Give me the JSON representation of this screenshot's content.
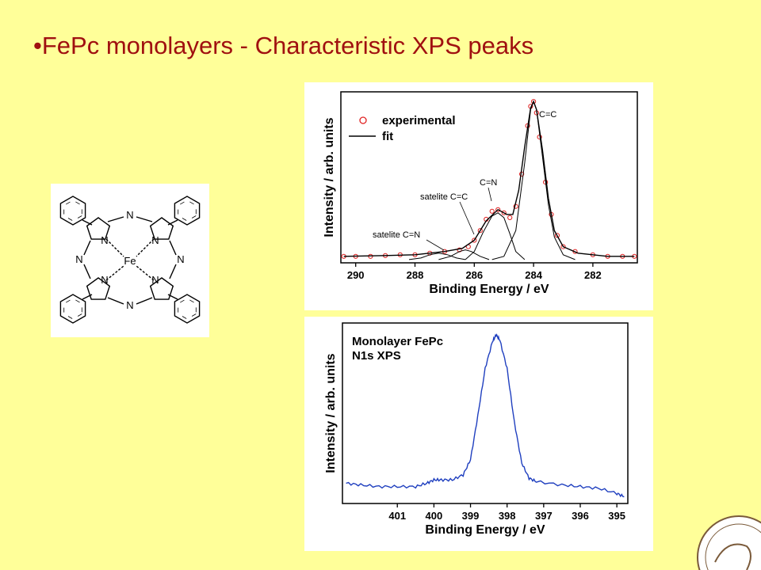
{
  "slide": {
    "title": "•FePc monolayers - Characteristic XPS peaks"
  },
  "molecule": {
    "center_atom": "Fe",
    "atom_label": "N"
  },
  "chart_data": [
    {
      "type": "line",
      "xlabel": "Binding Energy  /  eV",
      "ylabel": "Intensity  /  arb. units",
      "xlim": [
        290.5,
        280.5
      ],
      "x_reversed": true,
      "xticks": [
        "290",
        "288",
        "286",
        "284",
        "282"
      ],
      "legend": {
        "placement": "top-left",
        "entries": [
          "experimental",
          "fit"
        ]
      },
      "annotations": [
        "C=C",
        "C=N",
        "satelite C=C",
        "satelite C=N"
      ],
      "series": [
        {
          "name": "experimental",
          "style": "markers",
          "color": "#E02020",
          "points": [
            [
              290.4,
              0.04
            ],
            [
              290,
              0.04
            ],
            [
              289.5,
              0.04
            ],
            [
              289,
              0.045
            ],
            [
              288.5,
              0.05
            ],
            [
              288,
              0.05
            ],
            [
              287.5,
              0.06
            ],
            [
              287,
              0.07
            ],
            [
              286.5,
              0.08
            ],
            [
              286.2,
              0.1
            ],
            [
              286,
              0.14
            ],
            [
              285.8,
              0.2
            ],
            [
              285.6,
              0.27
            ],
            [
              285.4,
              0.32
            ],
            [
              285.2,
              0.33
            ],
            [
              285,
              0.31
            ],
            [
              284.8,
              0.28
            ],
            [
              284.6,
              0.35
            ],
            [
              284.4,
              0.55
            ],
            [
              284.2,
              0.85
            ],
            [
              284.1,
              0.97
            ],
            [
              284,
              1.0
            ],
            [
              283.9,
              0.93
            ],
            [
              283.8,
              0.78
            ],
            [
              283.6,
              0.5
            ],
            [
              283.4,
              0.3
            ],
            [
              283.2,
              0.17
            ],
            [
              283,
              0.1
            ],
            [
              282.6,
              0.07
            ],
            [
              282,
              0.05
            ],
            [
              281.5,
              0.04
            ],
            [
              281,
              0.04
            ],
            [
              280.6,
              0.04
            ]
          ]
        },
        {
          "name": "fit",
          "style": "line",
          "color": "#000000",
          "points": [
            [
              290.4,
              0.04
            ],
            [
              289,
              0.045
            ],
            [
              288,
              0.05
            ],
            [
              287,
              0.07
            ],
            [
              286.4,
              0.09
            ],
            [
              286,
              0.14
            ],
            [
              285.6,
              0.26
            ],
            [
              285.2,
              0.33
            ],
            [
              284.9,
              0.3
            ],
            [
              284.7,
              0.3
            ],
            [
              284.5,
              0.45
            ],
            [
              284.3,
              0.72
            ],
            [
              284.1,
              0.96
            ],
            [
              284,
              1.0
            ],
            [
              283.9,
              0.95
            ],
            [
              283.7,
              0.7
            ],
            [
              283.5,
              0.4
            ],
            [
              283.3,
              0.2
            ],
            [
              283,
              0.1
            ],
            [
              282.5,
              0.06
            ],
            [
              281.5,
              0.04
            ],
            [
              280.6,
              0.04
            ]
          ]
        },
        {
          "name": "C=C",
          "style": "component",
          "color": "#000000",
          "points": [
            [
              285.4,
              0.02
            ],
            [
              285,
              0.04
            ],
            [
              284.6,
              0.2
            ],
            [
              284.3,
              0.62
            ],
            [
              284.1,
              0.95
            ],
            [
              284,
              1.0
            ],
            [
              283.9,
              0.95
            ],
            [
              283.7,
              0.66
            ],
            [
              283.5,
              0.36
            ],
            [
              283.3,
              0.16
            ],
            [
              283,
              0.05
            ],
            [
              282.6,
              0.02
            ]
          ]
        },
        {
          "name": "C=N",
          "style": "component",
          "color": "#000000",
          "points": [
            [
              286.3,
              0.02
            ],
            [
              286,
              0.07
            ],
            [
              285.7,
              0.19
            ],
            [
              285.4,
              0.29
            ],
            [
              285.2,
              0.31
            ],
            [
              285,
              0.28
            ],
            [
              284.8,
              0.18
            ],
            [
              284.6,
              0.07
            ],
            [
              284.3,
              0.02
            ]
          ]
        },
        {
          "name": "satelite C=C",
          "style": "component",
          "color": "#000000",
          "points": [
            [
              287.2,
              0.02
            ],
            [
              286.8,
              0.04
            ],
            [
              286.5,
              0.07
            ],
            [
              286.3,
              0.08
            ],
            [
              286.1,
              0.07
            ],
            [
              285.8,
              0.04
            ],
            [
              285.5,
              0.02
            ]
          ]
        },
        {
          "name": "satelite C=N",
          "style": "component",
          "color": "#000000",
          "points": [
            [
              288.2,
              0.02
            ],
            [
              287.8,
              0.03
            ],
            [
              287.5,
              0.05
            ],
            [
              287.2,
              0.06
            ],
            [
              286.9,
              0.05
            ],
            [
              286.6,
              0.03
            ],
            [
              286.3,
              0.02
            ]
          ]
        }
      ]
    },
    {
      "type": "line",
      "xlabel": "Binding Energy  /  eV",
      "ylabel": "Intensity  /  arb. units",
      "xlim": [
        402.5,
        394.7
      ],
      "x_reversed": true,
      "xticks": [
        "401",
        "400",
        "399",
        "398",
        "397",
        "396",
        "395"
      ],
      "annotations": [
        "Monolayer FePc",
        "N1s XPS"
      ],
      "series": [
        {
          "name": "N1s",
          "style": "line",
          "color": "#1F3FBF",
          "points": [
            [
              402.4,
              0.12
            ],
            [
              402,
              0.11
            ],
            [
              401.5,
              0.1
            ],
            [
              401,
              0.1
            ],
            [
              400.5,
              0.1
            ],
            [
              400.2,
              0.12
            ],
            [
              400,
              0.14
            ],
            [
              399.8,
              0.14
            ],
            [
              399.5,
              0.14
            ],
            [
              399.2,
              0.17
            ],
            [
              399,
              0.26
            ],
            [
              398.8,
              0.52
            ],
            [
              398.6,
              0.8
            ],
            [
              398.4,
              0.96
            ],
            [
              398.3,
              1.0
            ],
            [
              398.2,
              0.97
            ],
            [
              398,
              0.8
            ],
            [
              397.8,
              0.48
            ],
            [
              397.6,
              0.24
            ],
            [
              397.4,
              0.15
            ],
            [
              397.2,
              0.13
            ],
            [
              396.5,
              0.11
            ],
            [
              396,
              0.1
            ],
            [
              395.5,
              0.09
            ],
            [
              395,
              0.06
            ],
            [
              394.8,
              0.04
            ]
          ]
        }
      ]
    }
  ]
}
